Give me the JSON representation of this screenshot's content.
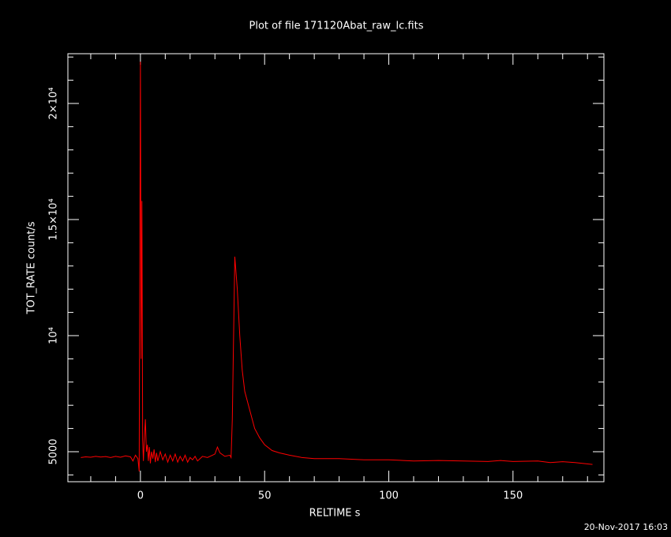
{
  "chart_data": {
    "type": "line",
    "title": "Plot of file 171120Abat_raw_lc.fits",
    "x_label": "RELTIME  s",
    "y_label": "TOT_RATE  count/s",
    "timestamp": "20-Nov-2017 16:03",
    "xlim": [
      -29.2,
      186.6
    ],
    "ylim": [
      3707,
      22143
    ],
    "xticks": [
      0,
      50,
      100,
      150
    ],
    "yticks": [
      5000,
      {
        "value": 10000,
        "label": "10⁴"
      },
      {
        "value": 15000,
        "label": "1.5×10⁴"
      },
      {
        "value": 20000,
        "label": "2×10⁴"
      }
    ],
    "minor_xticks": [
      -20,
      -10,
      10,
      20,
      30,
      40,
      60,
      70,
      80,
      90,
      110,
      120,
      130,
      140,
      160,
      170,
      180
    ],
    "minor_yticks": [
      4000,
      6000,
      7000,
      8000,
      9000,
      11000,
      12000,
      13000,
      14000,
      16000,
      17000,
      18000,
      19000,
      21000,
      22000
    ],
    "background": "#000000",
    "axis_color": "#ffffff",
    "series": [
      {
        "color": "#ff0000",
        "x": [
          -24,
          -22,
          -20,
          -18,
          -16,
          -14,
          -12,
          -10,
          -8,
          -6,
          -4,
          -3,
          -2,
          -1,
          -0.5,
          0,
          0.3,
          0.6,
          0.9,
          1.2,
          1.6,
          2,
          2.4,
          2.8,
          3.2,
          3.6,
          4,
          4.5,
          5,
          5.5,
          6,
          6.5,
          7,
          8,
          9,
          10,
          11,
          12,
          13,
          14,
          15,
          16,
          17,
          18,
          19,
          20,
          21,
          22,
          23,
          25,
          27,
          29,
          30,
          31,
          32,
          34,
          36,
          36.5,
          37,
          38,
          39,
          40,
          41,
          42,
          44,
          46,
          48,
          50,
          53,
          56,
          60,
          65,
          70,
          80,
          90,
          100,
          110,
          120,
          130,
          140,
          145,
          150,
          160,
          165,
          170,
          175,
          182
        ],
        "values": [
          4750,
          4780,
          4760,
          4800,
          4770,
          4790,
          4750,
          4800,
          4760,
          4820,
          4780,
          4600,
          4850,
          4700,
          4150,
          21800,
          9000,
          15800,
          5500,
          4600,
          5600,
          6400,
          5000,
          5300,
          4600,
          5200,
          4500,
          5000,
          4700,
          5100,
          4550,
          4950,
          4600,
          5000,
          4650,
          4900,
          4550,
          4850,
          4600,
          4900,
          4550,
          4800,
          4600,
          4850,
          4550,
          4750,
          4650,
          4800,
          4600,
          4800,
          4750,
          4850,
          4900,
          5200,
          4950,
          4800,
          4850,
          4750,
          6400,
          13400,
          12000,
          10000,
          8500,
          7600,
          6800,
          6000,
          5600,
          5300,
          5050,
          4950,
          4850,
          4750,
          4700,
          4700,
          4650,
          4650,
          4600,
          4620,
          4600,
          4580,
          4620,
          4580,
          4600,
          4530,
          4570,
          4530,
          4450
        ]
      }
    ]
  }
}
